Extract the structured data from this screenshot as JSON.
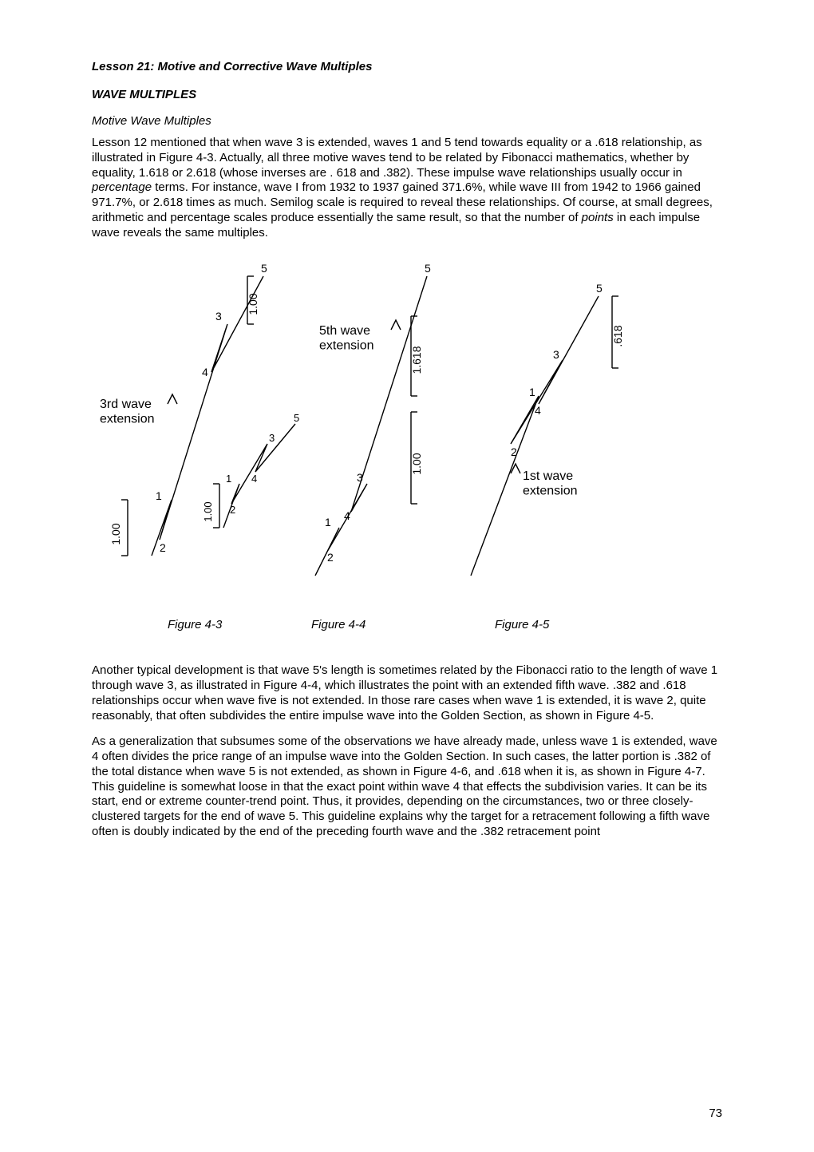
{
  "title": "Lesson 21: Motive and Corrective Wave Multiples",
  "section_heading": "WAVE MULTIPLES",
  "sub_heading": "Motive Wave Multiples",
  "para1": "Lesson 12 mentioned that when wave 3 is extended, waves 1 and 5 tend towards equality or a .618 relationship, as illustrated in Figure 4-3. Actually, all three motive waves tend to be related by Fibonacci mathematics, whether by equality, 1.618 or 2.618 (whose inverses are . 618 and .382). These impulse wave relationships usually occur in percentage terms. For instance, wave I from 1932 to 1937 gained 371.6%, while wave III from 1942 to 1966 gained 971.7%, or 2.618 times as much. Semilog scale is required to reveal these relationships. Of course, at small degrees, arithmetic and percentage scales produce essentially the same result, so that the number of points in each impulse wave reveals the same multiples.",
  "para2": "Another typical development is that wave 5's length is sometimes related by the Fibonacci ratio to the length of wave 1 through wave 3, as illustrated in Figure 4-4, which illustrates the point with an extended fifth wave. .382 and .618 relationships occur when wave five is not extended. In those rare cases when wave 1 is extended, it is wave 2, quite reasonably, that often subdivides the entire impulse wave into the Golden Section, as shown in Figure 4-5.",
  "para3": "As a generalization that subsumes some of the observations we have already made, unless wave 1 is extended, wave 4 often divides the price range of an impulse wave into the Golden Section. In such cases, the latter portion is .382 of the total distance when wave 5 is not extended, as shown in Figure 4-6, and .618 when it is, as shown in Figure 4-7. This guideline is somewhat loose in that the exact point within wave 4 that effects the subdivision varies. It can be its start, end or extreme counter-trend point. Thus, it provides, depending on the circumstances, two or three closely-clustered targets for the end of wave 5. This guideline explains why the target for a retracement following a fifth wave often is doubly indicated by the end of the preceding fourth wave and the .382 retracement point",
  "figure_labels": {
    "f1": "Figure 4-3",
    "f2": "Figure 4-4",
    "f3": "Figure 4-5"
  },
  "diagram": {
    "labels": {
      "third_ext": "3rd wave\nextension",
      "fifth_ext": "5th wave\nextension",
      "first_ext": "1st wave\nextension",
      "ratio_100": "1.00",
      "ratio_618": ".618",
      "ratio_1618": "1.618"
    },
    "numbers": [
      "1",
      "2",
      "3",
      "4",
      "5"
    ],
    "colors": {
      "line": "#000000",
      "text": "#000000",
      "bg": "#ffffff"
    },
    "line_width": 1.4,
    "tick_length": 8,
    "font_size_label": 16,
    "font_size_num": 14
  },
  "page_number": "73"
}
